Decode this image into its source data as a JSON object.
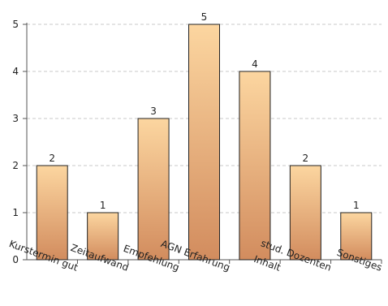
{
  "chart_data": {
    "type": "bar",
    "categories": [
      "Kurstermin gut",
      "Zeitaufwand",
      "Empfehlung",
      "AGN Erfahrung",
      "Inhalt",
      "stud. Dozenten",
      "Sonstiges"
    ],
    "values": [
      2,
      1,
      3,
      5,
      4,
      2,
      1
    ],
    "ylim": [
      0,
      5
    ],
    "yticks": [
      0,
      1,
      2,
      3,
      4,
      5
    ],
    "grid": true,
    "grid_style": "dashed",
    "data_labels": true,
    "legend": "none",
    "bar_gradient": [
      "#fcd6a0",
      "#d28c5e"
    ],
    "bar_stroke": "#222222",
    "grid_color": "#c8c8c8",
    "axis_color": "#555555"
  }
}
